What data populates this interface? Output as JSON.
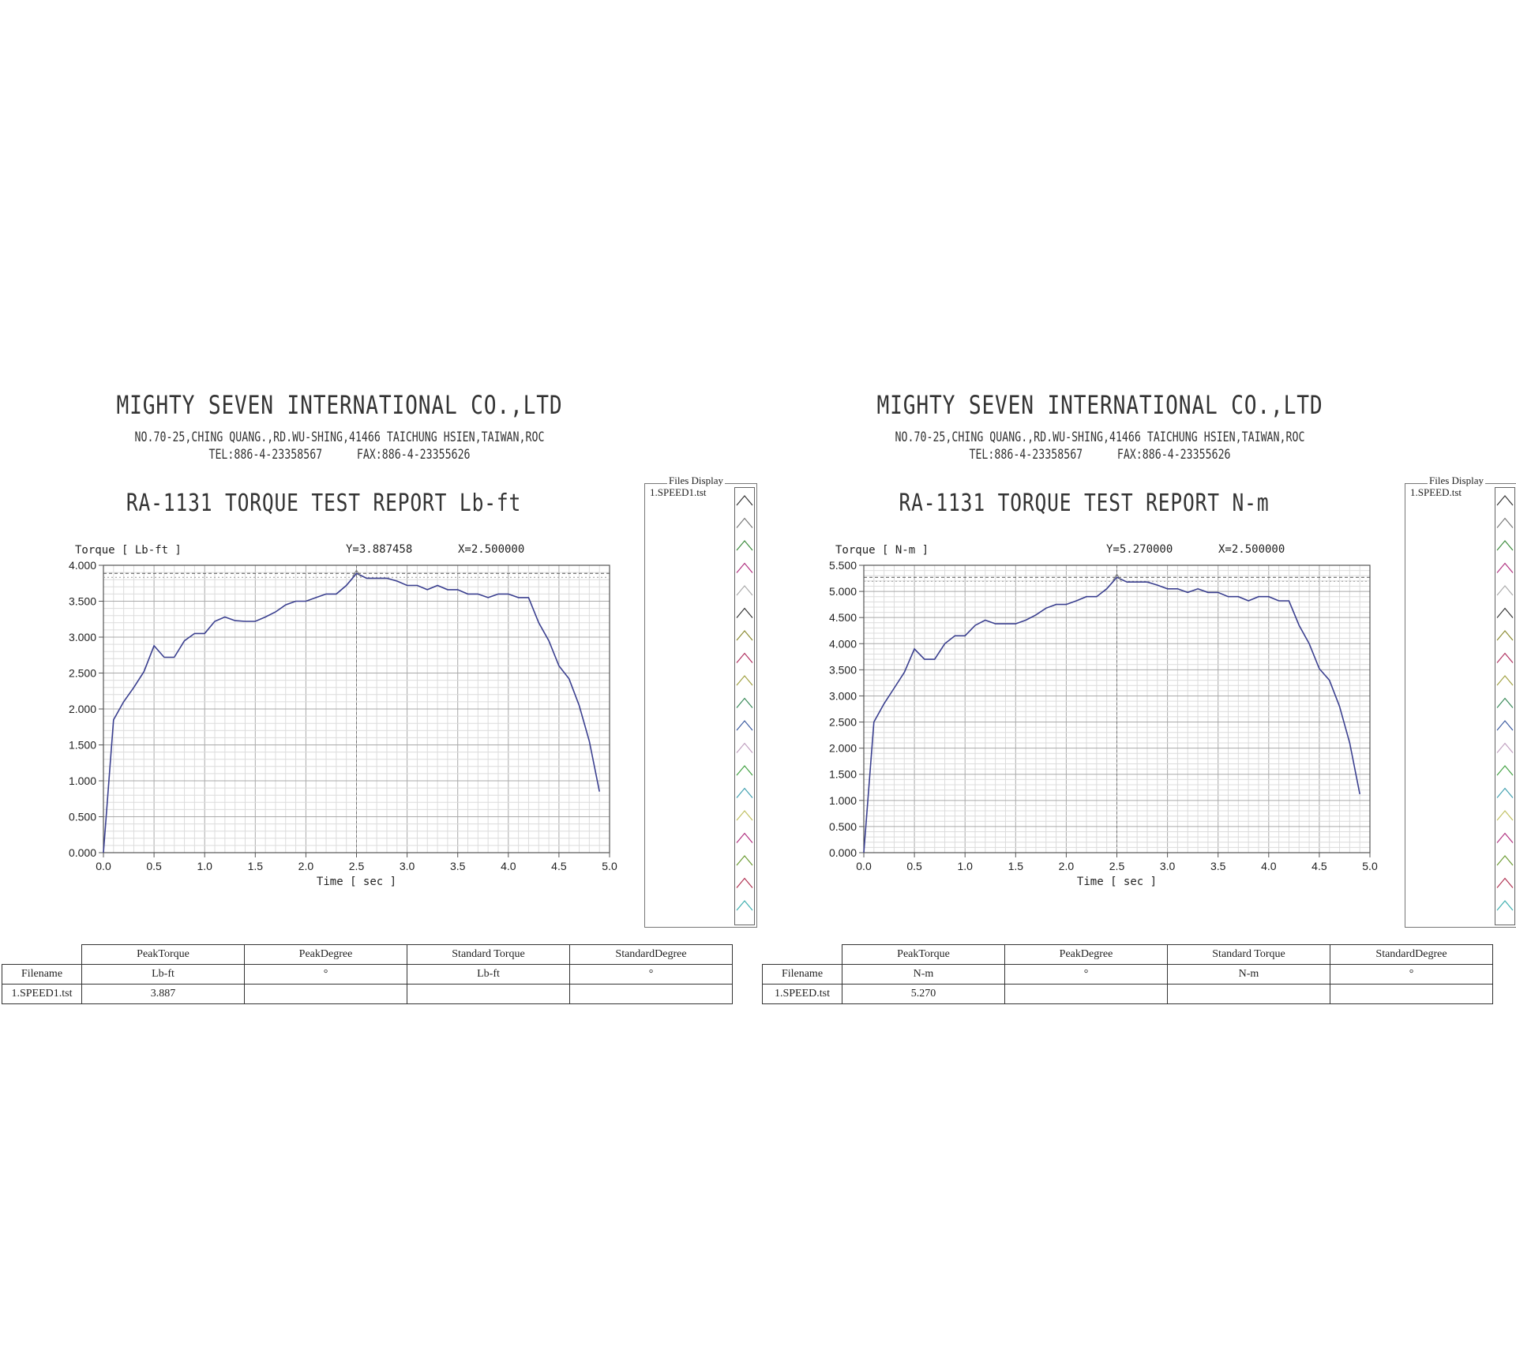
{
  "reports": [
    {
      "company": "MIGHTY SEVEN INTERNATIONAL CO.,LTD",
      "address": "NO.70-25,CHING QUANG.,RD.WU-SHING,41466 TAICHUNG HSIEN,TAIWAN,ROC",
      "tel": "TEL:886-4-23358567",
      "fax": "FAX:886-4-23355626",
      "report_title": "RA-1131 TORQUE TEST REPORT Lb-ft",
      "files_panel": {
        "title": "Files Display",
        "item": "1.SPEED1.tst"
      },
      "results_table": {
        "headers": [
          "PeakTorque",
          "PeakDegree",
          "Standard Torque",
          "StandardDegree"
        ],
        "units_label": "Filename",
        "units": [
          "Lb-ft",
          "°",
          "Lb-ft",
          "°"
        ],
        "rows": [
          [
            "1.SPEED1.tst",
            "3.887",
            "",
            "",
            ""
          ]
        ]
      },
      "chart_data": {
        "type": "line",
        "ylabel": "Torque [ Lb-ft ]",
        "xlabel": "Time [ sec ]",
        "cursor_readout": {
          "y": "Y=3.887458",
          "x": "X=2.500000"
        },
        "cursor": {
          "x": 2.5,
          "y": 3.887458
        },
        "xlim": [
          0,
          5
        ],
        "ylim": [
          0,
          4
        ],
        "xticks": [
          0,
          0.5,
          1,
          1.5,
          2,
          2.5,
          3,
          3.5,
          4,
          4.5,
          5
        ],
        "xtick_labels": [
          "0.0",
          "0.5",
          "1.0",
          "1.5",
          "2.0",
          "2.5",
          "3.0",
          "3.5",
          "4.0",
          "4.5",
          "5.0"
        ],
        "yticks": [
          0,
          0.5,
          1,
          1.5,
          2,
          2.5,
          3,
          3.5,
          4
        ],
        "ytick_labels": [
          "0.000",
          "0.500",
          "1.000",
          "1.500",
          "2.000",
          "2.500",
          "3.000",
          "3.500",
          "4.000"
        ],
        "grid": true,
        "line_color": "#3a3f8f",
        "series": [
          {
            "x": [
              0,
              0.1,
              0.2,
              0.3,
              0.4,
              0.5,
              0.6,
              0.7,
              0.8,
              0.9,
              1.0,
              1.1,
              1.2,
              1.3,
              1.4,
              1.5,
              1.6,
              1.7,
              1.8,
              1.9,
              2.0,
              2.1,
              2.2,
              2.3,
              2.4,
              2.5,
              2.6,
              2.7,
              2.8,
              2.9,
              3.0,
              3.1,
              3.2,
              3.3,
              3.4,
              3.5,
              3.6,
              3.7,
              3.8,
              3.9,
              4.0,
              4.1,
              4.2,
              4.3,
              4.4,
              4.5,
              4.6,
              4.7,
              4.8,
              4.9
            ],
            "y": [
              0,
              1.85,
              2.1,
              2.3,
              2.52,
              2.88,
              2.72,
              2.72,
              2.95,
              3.05,
              3.05,
              3.22,
              3.28,
              3.23,
              3.22,
              3.22,
              3.28,
              3.35,
              3.45,
              3.5,
              3.5,
              3.55,
              3.6,
              3.6,
              3.72,
              3.887,
              3.82,
              3.82,
              3.82,
              3.78,
              3.72,
              3.72,
              3.66,
              3.72,
              3.66,
              3.66,
              3.6,
              3.6,
              3.55,
              3.6,
              3.6,
              3.55,
              3.55,
              3.2,
              2.95,
              2.6,
              2.42,
              2.05,
              1.55,
              0.85
            ]
          }
        ]
      }
    },
    {
      "company": "MIGHTY SEVEN INTERNATIONAL CO.,LTD",
      "address": "NO.70-25,CHING QUANG.,RD.WU-SHING,41466 TAICHUNG HSIEN,TAIWAN,ROC",
      "tel": "TEL:886-4-23358567",
      "fax": "FAX:886-4-23355626",
      "report_title": "RA-1131 TORQUE TEST REPORT N-m",
      "files_panel": {
        "title": "Files Display",
        "item": "1.SPEED.tst"
      },
      "results_table": {
        "headers": [
          "PeakTorque",
          "PeakDegree",
          "Standard Torque",
          "StandardDegree"
        ],
        "units_label": "Filename",
        "units": [
          "N-m",
          "°",
          "N-m",
          "°"
        ],
        "rows": [
          [
            "1.SPEED.tst",
            "5.270",
            "",
            "",
            ""
          ]
        ]
      },
      "chart_data": {
        "type": "line",
        "ylabel": "Torque [ N-m ]",
        "xlabel": "Time [ sec ]",
        "cursor_readout": {
          "y": "Y=5.270000",
          "x": "X=2.500000"
        },
        "cursor": {
          "x": 2.5,
          "y": 5.27
        },
        "xlim": [
          0,
          5
        ],
        "ylim": [
          0,
          5.5
        ],
        "xticks": [
          0,
          0.5,
          1,
          1.5,
          2,
          2.5,
          3,
          3.5,
          4,
          4.5,
          5
        ],
        "xtick_labels": [
          "0.0",
          "0.5",
          "1.0",
          "1.5",
          "2.0",
          "2.5",
          "3.0",
          "3.5",
          "4.0",
          "4.5",
          "5.0"
        ],
        "yticks": [
          0,
          0.5,
          1,
          1.5,
          2,
          2.5,
          3,
          3.5,
          4,
          4.5,
          5,
          5.5
        ],
        "ytick_labels": [
          "0.000",
          "0.500",
          "1.000",
          "1.500",
          "2.000",
          "2.500",
          "3.000",
          "3.500",
          "4.000",
          "4.500",
          "5.000",
          "5.500"
        ],
        "grid": true,
        "line_color": "#3a3f8f",
        "series": [
          {
            "x": [
              0,
              0.1,
              0.2,
              0.3,
              0.4,
              0.5,
              0.6,
              0.7,
              0.8,
              0.9,
              1.0,
              1.1,
              1.2,
              1.3,
              1.4,
              1.5,
              1.6,
              1.7,
              1.8,
              1.9,
              2.0,
              2.1,
              2.2,
              2.3,
              2.4,
              2.5,
              2.6,
              2.7,
              2.8,
              2.9,
              3.0,
              3.1,
              3.2,
              3.3,
              3.4,
              3.5,
              3.6,
              3.7,
              3.8,
              3.9,
              4.0,
              4.1,
              4.2,
              4.3,
              4.4,
              4.5,
              4.6,
              4.7,
              4.8,
              4.9
            ],
            "y": [
              0,
              2.5,
              2.85,
              3.15,
              3.45,
              3.9,
              3.7,
              3.7,
              4.0,
              4.15,
              4.15,
              4.35,
              4.45,
              4.38,
              4.38,
              4.38,
              4.45,
              4.55,
              4.68,
              4.75,
              4.75,
              4.82,
              4.9,
              4.9,
              5.05,
              5.27,
              5.18,
              5.18,
              5.18,
              5.12,
              5.05,
              5.05,
              4.98,
              5.05,
              4.98,
              4.98,
              4.9,
              4.9,
              4.82,
              4.9,
              4.9,
              4.82,
              4.82,
              4.35,
              4.0,
              3.52,
              3.3,
              2.8,
              2.1,
              1.12
            ]
          }
        ]
      }
    }
  ]
}
